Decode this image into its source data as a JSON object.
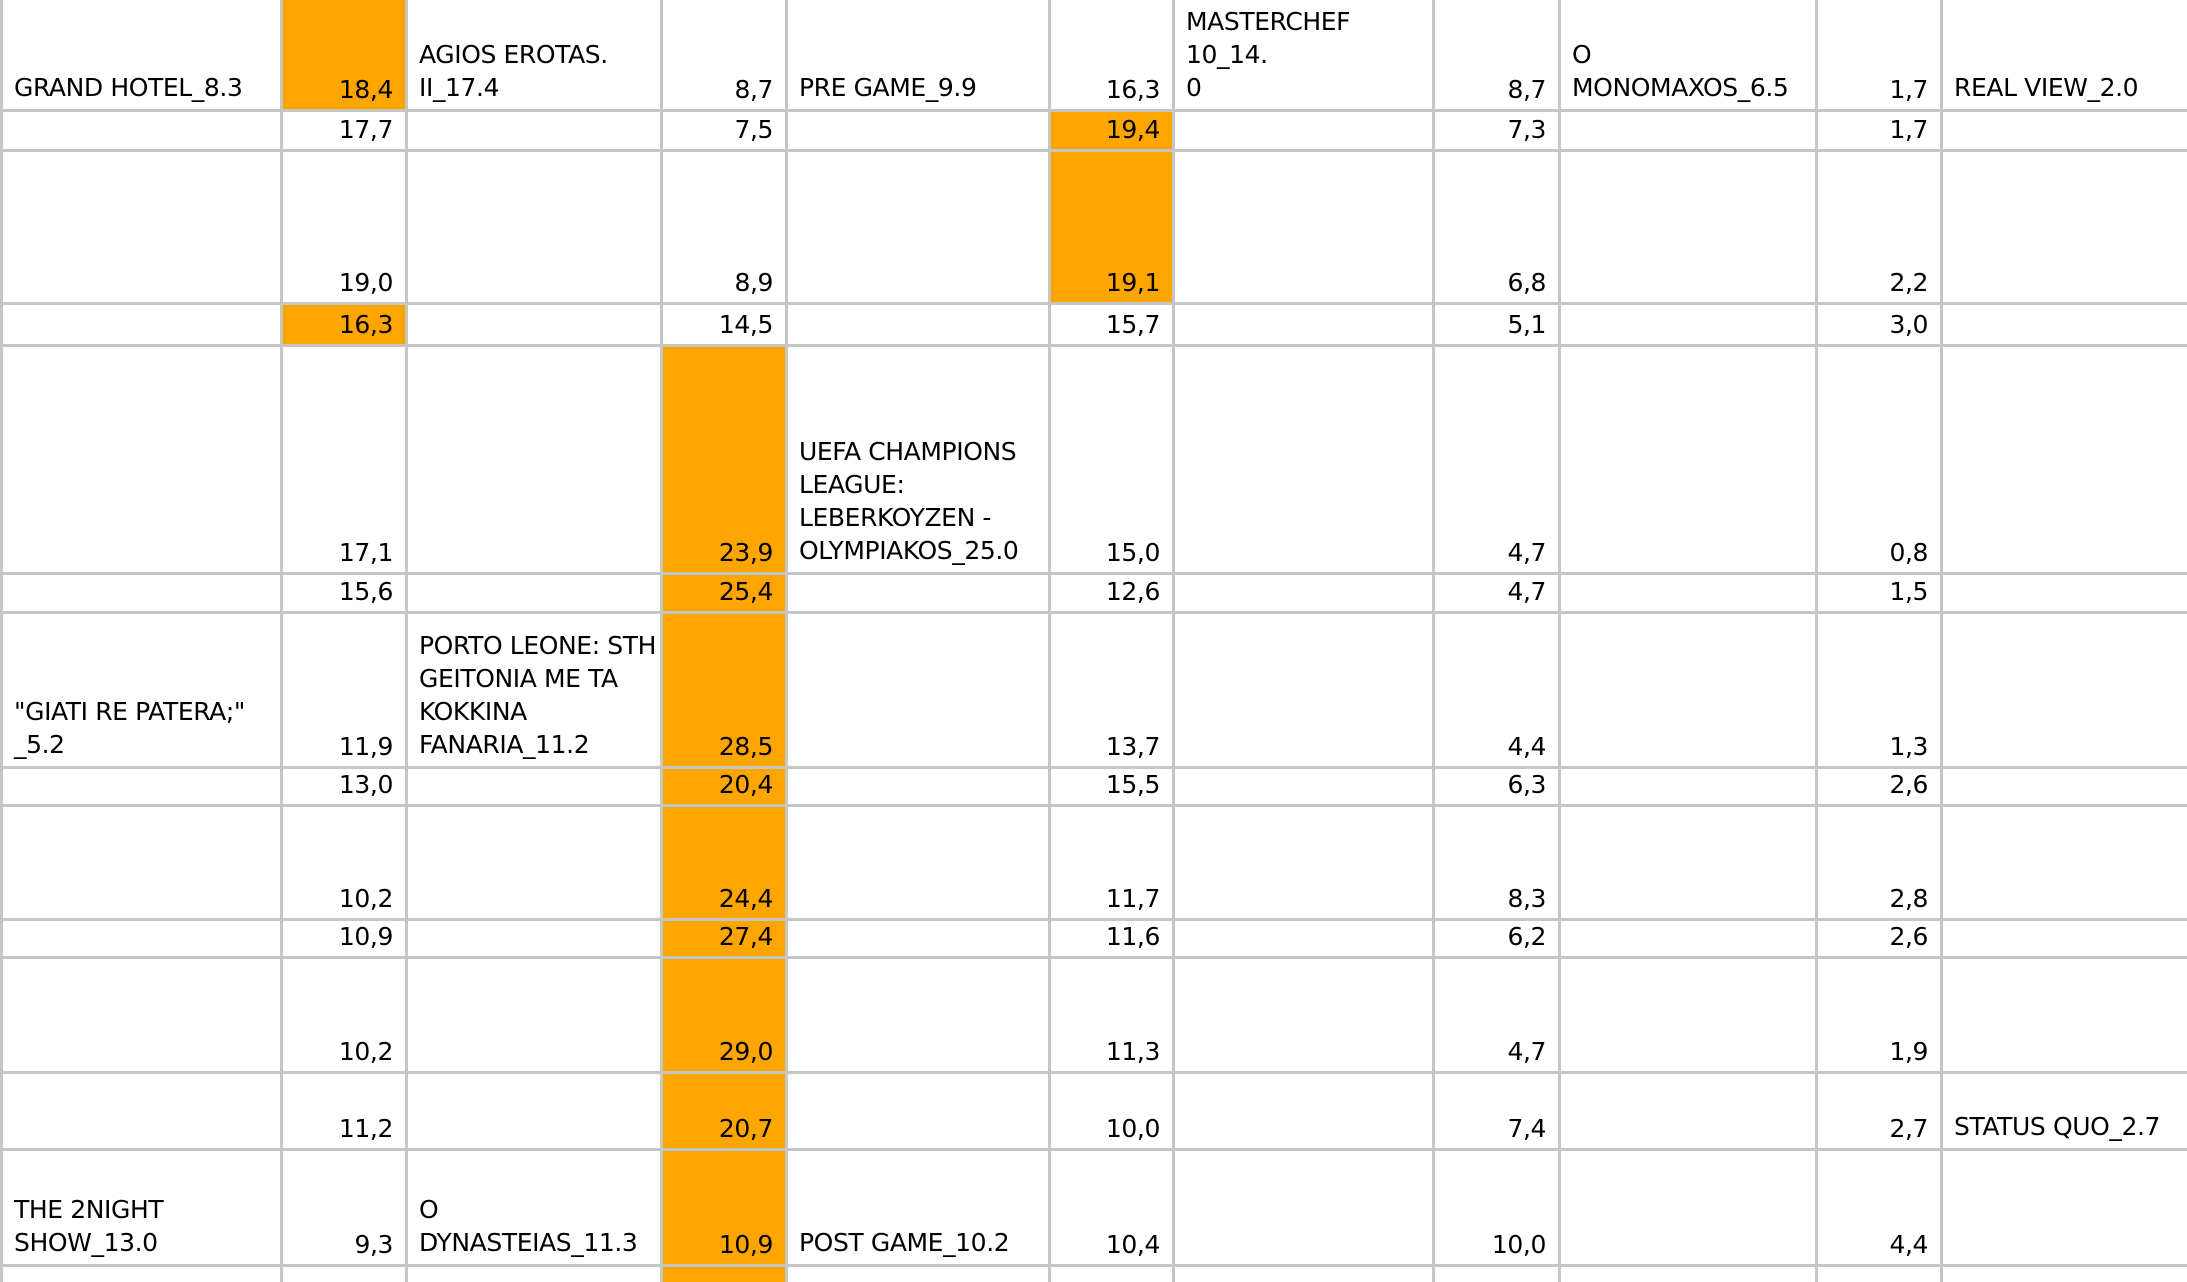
{
  "app": {
    "description": "TV audience ratings spreadsheet grid (Excel-style), programs with rating shares, highlighted leader cells"
  },
  "styles": {
    "highlight_color": "#FFA500",
    "gridline_color": "#C6C6C6",
    "background_color": "#FFFFFF",
    "text_color": "#000000"
  },
  "grid": {
    "rows": [
      [
        {
          "t": "GRAND HOTEL_8.3"
        },
        {
          "t": "18,4",
          "h": true
        },
        {
          "t": "AGIOS EROTAS.\nII_17.4"
        },
        {
          "t": "8,7"
        },
        {
          "t": "PRE GAME_9.9"
        },
        {
          "t": "16,3"
        },
        {
          "t": "MASTERCHEF 10_14.\n0"
        },
        {
          "t": "8,7"
        },
        {
          "t": "O MONOMAXOS_6.5"
        },
        {
          "t": "1,7"
        },
        {
          "t": "REAL VIEW_2.0"
        }
      ],
      [
        null,
        {
          "t": "17,7"
        },
        null,
        {
          "t": "7,5"
        },
        null,
        {
          "t": "19,4",
          "h": true
        },
        null,
        {
          "t": "7,3"
        },
        null,
        {
          "t": "1,7"
        },
        null
      ],
      [
        null,
        {
          "t": "19,0"
        },
        null,
        {
          "t": "8,9"
        },
        null,
        {
          "t": "19,1",
          "h": true
        },
        null,
        {
          "t": "6,8"
        },
        null,
        {
          "t": "2,2"
        },
        null
      ],
      [
        null,
        {
          "t": "16,3",
          "h": true
        },
        null,
        {
          "t": "14,5"
        },
        null,
        {
          "t": "15,7"
        },
        null,
        {
          "t": "5,1"
        },
        null,
        {
          "t": "3,0"
        },
        null
      ],
      [
        null,
        {
          "t": "17,1"
        },
        null,
        {
          "t": "23,9",
          "h": true
        },
        {
          "t": "UEFA CHAMPIONS\nLEAGUE:\nLEBERKOYZEN -\nOLYMPIAKOS_25.0"
        },
        {
          "t": "15,0"
        },
        null,
        {
          "t": "4,7"
        },
        null,
        {
          "t": "0,8"
        },
        null
      ],
      [
        null,
        {
          "t": "15,6"
        },
        null,
        {
          "t": "25,4",
          "h": true
        },
        null,
        {
          "t": "12,6"
        },
        null,
        {
          "t": "4,7"
        },
        null,
        {
          "t": "1,5"
        },
        null
      ],
      [
        {
          "t": "\"GIATI RE PATERA;\"\n_5.2"
        },
        {
          "t": "11,9"
        },
        {
          "t": "PORTO LEONE: STH\nGEITONIA ME TA\nKOKKINA\nFANARIA_11.2"
        },
        {
          "t": "28,5",
          "h": true
        },
        null,
        {
          "t": "13,7"
        },
        null,
        {
          "t": "4,4"
        },
        null,
        {
          "t": "1,3"
        },
        null
      ],
      [
        null,
        {
          "t": "13,0"
        },
        null,
        {
          "t": "20,4",
          "h": true
        },
        null,
        {
          "t": "15,5"
        },
        null,
        {
          "t": "6,3"
        },
        null,
        {
          "t": "2,6"
        },
        null
      ],
      [
        null,
        {
          "t": "10,2"
        },
        null,
        {
          "t": "24,4",
          "h": true
        },
        null,
        {
          "t": "11,7"
        },
        null,
        {
          "t": "8,3"
        },
        null,
        {
          "t": "2,8"
        },
        null
      ],
      [
        null,
        {
          "t": "10,9"
        },
        null,
        {
          "t": "27,4",
          "h": true
        },
        null,
        {
          "t": "11,6"
        },
        null,
        {
          "t": "6,2"
        },
        null,
        {
          "t": "2,6"
        },
        null
      ],
      [
        null,
        {
          "t": "10,2"
        },
        null,
        {
          "t": "29,0",
          "h": true
        },
        null,
        {
          "t": "11,3"
        },
        null,
        {
          "t": "4,7"
        },
        null,
        {
          "t": "1,9"
        },
        null
      ],
      [
        null,
        {
          "t": "11,2"
        },
        null,
        {
          "t": "20,7",
          "h": true
        },
        null,
        {
          "t": "10,0"
        },
        null,
        {
          "t": "7,4"
        },
        null,
        {
          "t": "2,7"
        },
        {
          "t": "STATUS QUO_2.7"
        }
      ],
      [
        {
          "t": "THE 2NIGHT\nSHOW_13.0"
        },
        {
          "t": "9,3"
        },
        {
          "t": "O DYNASTEIAS_11.3"
        },
        {
          "t": "10,9",
          "h": true
        },
        {
          "t": "POST GAME_10.2"
        },
        {
          "t": "10,4"
        },
        null,
        {
          "t": "10,0"
        },
        null,
        {
          "t": "4,4"
        },
        null
      ],
      [
        null,
        null,
        null,
        {
          "t": "",
          "h": true
        },
        null,
        null,
        null,
        null,
        null,
        null,
        null
      ]
    ]
  }
}
